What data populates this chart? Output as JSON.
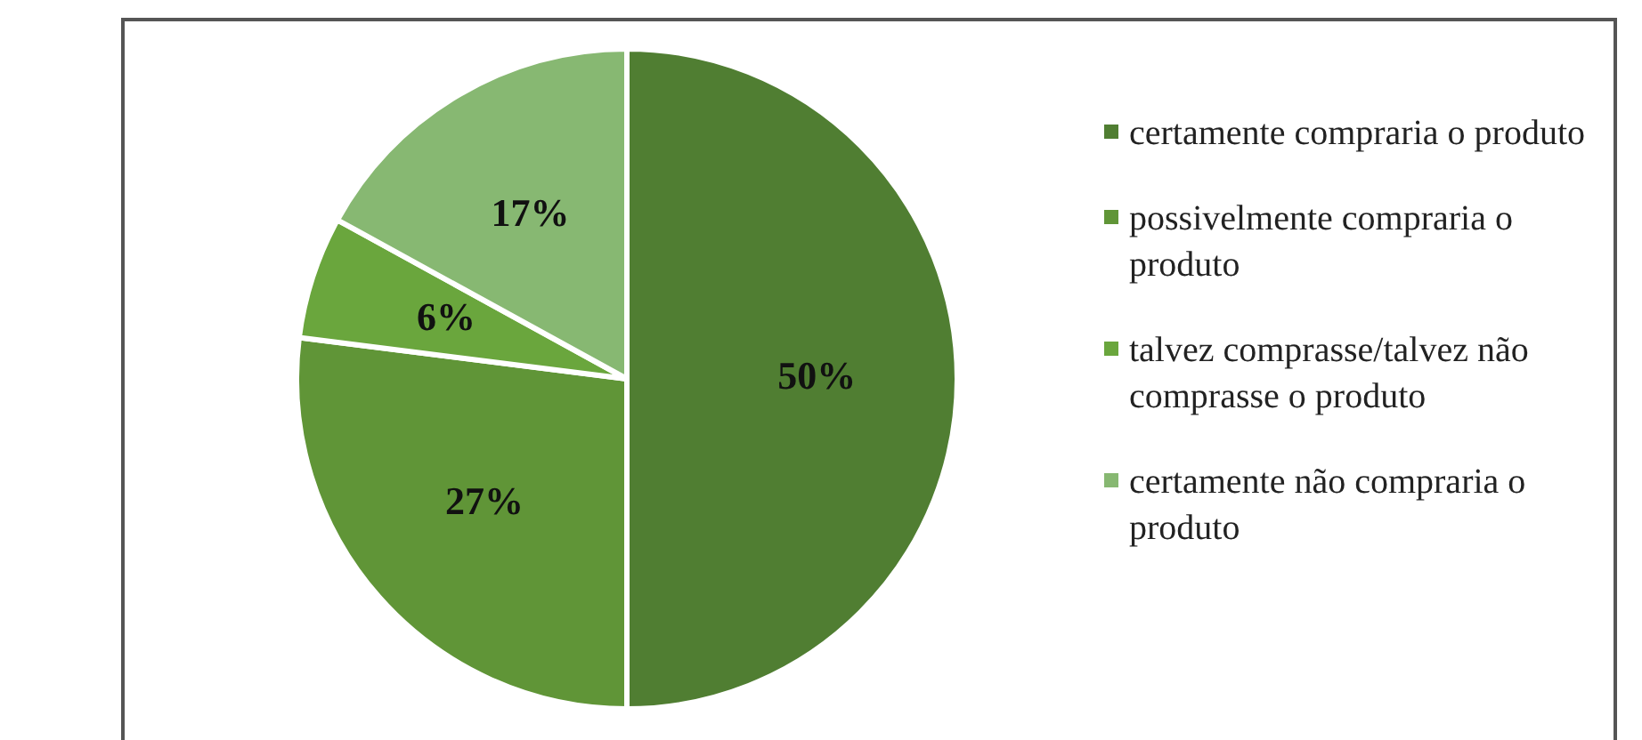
{
  "chart_data": {
    "type": "pie",
    "categories": [
      "certamente compraria o produto",
      "possivelmente compraria o produto",
      "talvez comprasse/talvez não comprasse o produto",
      "certamente não compraria o produto"
    ],
    "values": [
      50,
      27,
      6,
      17
    ],
    "colors": [
      "#507e32",
      "#609537",
      "#6aa63d",
      "#87b872"
    ],
    "value_labels": [
      "50%",
      "27%",
      "6%",
      "17%"
    ],
    "legend": "right"
  }
}
